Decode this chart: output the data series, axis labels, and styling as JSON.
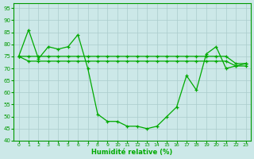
{
  "title": "",
  "xlabel": "Humidité relative (%)",
  "ylabel": "",
  "bg_color": "#cce8e8",
  "grid_color": "#aacccc",
  "line_color": "#00aa00",
  "ylim": [
    40,
    97
  ],
  "xlim": [
    -0.5,
    23.5
  ],
  "yticks": [
    40,
    45,
    50,
    55,
    60,
    65,
    70,
    75,
    80,
    85,
    90,
    95
  ],
  "xticks": [
    0,
    1,
    2,
    3,
    4,
    5,
    6,
    7,
    8,
    9,
    10,
    11,
    12,
    13,
    14,
    15,
    16,
    17,
    18,
    19,
    20,
    21,
    22,
    23
  ],
  "line1": [
    75,
    86,
    74,
    79,
    78,
    79,
    84,
    70,
    51,
    48,
    48,
    46,
    46,
    45,
    46,
    50,
    54,
    67,
    61,
    76,
    79,
    70,
    71,
    72
  ],
  "line2": [
    75,
    75,
    75,
    75,
    75,
    75,
    75,
    75,
    75,
    75,
    75,
    75,
    75,
    75,
    75,
    75,
    75,
    75,
    75,
    75,
    75,
    75,
    72,
    72
  ],
  "line3": [
    75,
    73,
    73,
    73,
    73,
    73,
    73,
    73,
    73,
    73,
    73,
    73,
    73,
    73,
    73,
    73,
    73,
    73,
    73,
    73,
    73,
    73,
    71,
    71
  ]
}
